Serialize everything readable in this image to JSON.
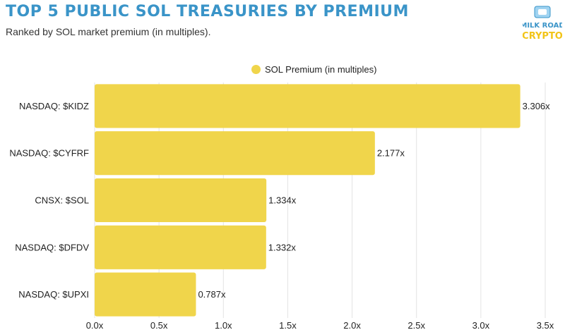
{
  "header": {
    "title": "TOP 5 PUBLIC SOL TREASURIES BY PREMIUM",
    "subtitle": "Ranked by SOL market premium (in multiples)."
  },
  "logo": {
    "line1": "MILK ROAD",
    "line2": "CRYPTO",
    "icon": "milk-carton-logo"
  },
  "colors": {
    "bar": "#f0d54b",
    "title": "#3a94c8",
    "grid": "#e3e3e3"
  },
  "chart_data": {
    "type": "bar",
    "orientation": "horizontal",
    "categories": [
      "NASDAQ: $KIDZ",
      "NASDAQ: $CYFRF",
      "CNSX: $SOL",
      "NASDAQ: $DFDV",
      "NASDAQ: $UPXI"
    ],
    "series": [
      {
        "name": "SOL Premium (in multiples)",
        "values": [
          3.306,
          2.177,
          1.334,
          1.332,
          0.787
        ],
        "labels": [
          "3.306x",
          "2.177x",
          "1.334x",
          "1.332x",
          "0.787x"
        ]
      }
    ],
    "xlim": [
      0,
      3.5
    ],
    "xticks": [
      0,
      0.5,
      1,
      1.5,
      2,
      2.5,
      3,
      3.5
    ],
    "xtick_labels": [
      "0.0x",
      "0.5x",
      "1.0x",
      "1.5x",
      "2.0x",
      "2.5x",
      "3.0x",
      "3.5x"
    ],
    "grid": true,
    "legend_position": "top-center"
  }
}
